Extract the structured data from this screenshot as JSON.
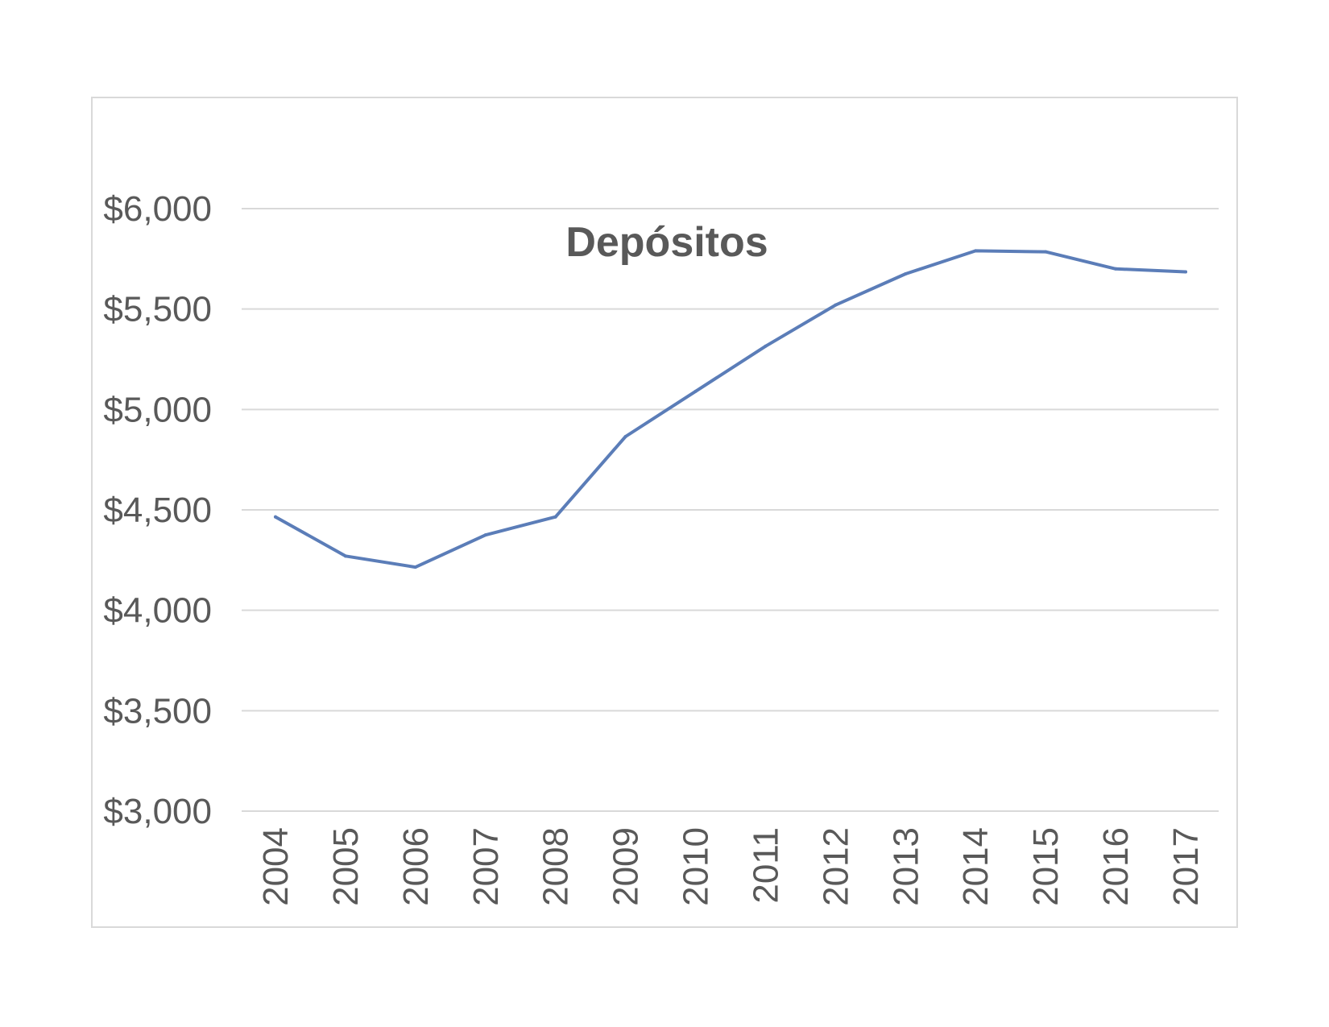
{
  "chart_data": {
    "type": "line",
    "title": "Depósitos",
    "xlabel": "",
    "ylabel": "",
    "categories": [
      "2004",
      "2005",
      "2006",
      "2007",
      "2008",
      "2009",
      "2010",
      "2011",
      "2012",
      "2013",
      "2014",
      "2015",
      "2016",
      "2017"
    ],
    "series": [
      {
        "values": [
          4465,
          4270,
          4215,
          4375,
          4465,
          4865,
          5090,
          5315,
          5520,
          5675,
          5790,
          5785,
          5700,
          5685
        ]
      }
    ],
    "ylim": [
      3000,
      6000
    ],
    "yticks": [
      3000,
      3500,
      4000,
      4500,
      5000,
      5500,
      6000
    ],
    "ytick_labels": [
      "$3,000",
      "$3,500",
      "$4,000",
      "$4,500",
      "$5,000",
      "$5,500",
      "$6,000"
    ],
    "grid": true,
    "legend": "none",
    "colors": {
      "series": "#5b7db8",
      "grid": "#d9d9d9",
      "text": "#595959",
      "border": "#d9d9d9"
    }
  }
}
